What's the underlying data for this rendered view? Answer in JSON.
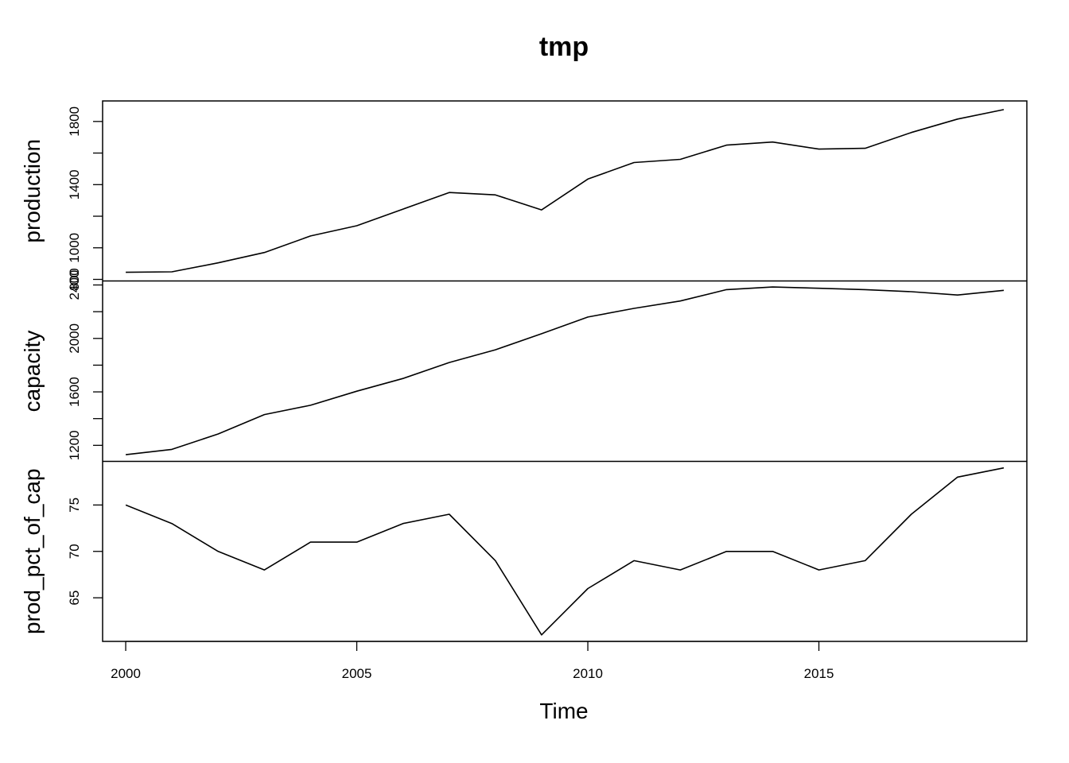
{
  "chart_data": {
    "type": "line",
    "layout": "stacked-panels",
    "title": "tmp",
    "xlabel": "Time",
    "xlim": [
      1999.5,
      2019.5
    ],
    "x_ticks": [
      2000,
      2005,
      2010,
      2015
    ],
    "x_tick_labels": [
      "2000",
      "2005",
      "2010",
      "2015"
    ],
    "x": [
      2000,
      2001,
      2002,
      2003,
      2004,
      2005,
      2006,
      2007,
      2008,
      2009,
      2010,
      2011,
      2012,
      2013,
      2014,
      2015,
      2016,
      2017,
      2018,
      2019
    ],
    "series": [
      {
        "name": "production",
        "ylim": [
          790,
          1930
        ],
        "y_ticks": [
          800,
          1000,
          1200,
          1400,
          1600,
          1800
        ],
        "y_tick_labels": [
          "800",
          "1000",
          "",
          "1400",
          "",
          "1800"
        ],
        "values": [
          845,
          848,
          905,
          970,
          1075,
          1140,
          1245,
          1350,
          1335,
          1240,
          1435,
          1540,
          1560,
          1650,
          1670,
          1625,
          1630,
          1730,
          1815,
          1875
        ]
      },
      {
        "name": "capacity",
        "ylim": [
          1080,
          2430
        ],
        "y_ticks": [
          1200,
          1400,
          1600,
          1800,
          2000,
          2200,
          2400
        ],
        "y_tick_labels": [
          "1200",
          "",
          "1600",
          "",
          "2000",
          "",
          "2400"
        ],
        "values": [
          1130,
          1170,
          1285,
          1430,
          1500,
          1605,
          1700,
          1820,
          1915,
          2035,
          2160,
          2225,
          2280,
          2365,
          2385,
          2375,
          2365,
          2350,
          2325,
          2360
        ]
      },
      {
        "name": "prod_pct_of_cap",
        "ylim": [
          60.3,
          79.7
        ],
        "y_ticks": [
          65,
          70,
          75
        ],
        "y_tick_labels": [
          "65",
          "70",
          "75"
        ],
        "values": [
          75,
          73,
          70,
          68,
          71,
          71,
          73,
          74,
          69,
          61,
          66,
          69,
          68,
          70,
          70,
          68,
          69,
          74,
          78,
          79
        ]
      }
    ],
    "grid": false,
    "legend": "none"
  }
}
